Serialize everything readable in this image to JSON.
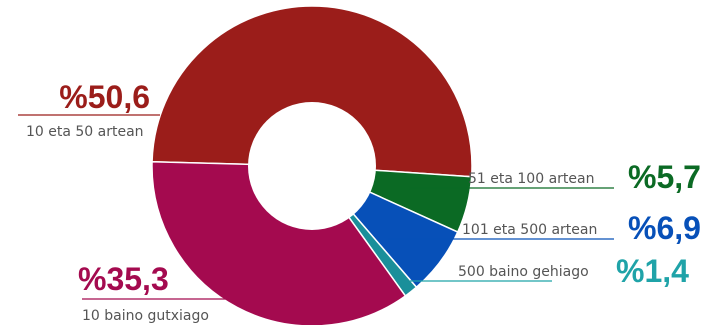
{
  "chart_data": {
    "type": "pie",
    "style": "donut",
    "title": "",
    "slices": [
      {
        "label": "10 eta 50 artean",
        "value": 50.6,
        "value_text": "%50,6",
        "color": "#9b1d1a",
        "text_color": "#9b1d1a"
      },
      {
        "label": "51 eta 100 artean",
        "value": 5.7,
        "value_text": "%5,7",
        "color": "#0b6a24",
        "text_color": "#0b6a24"
      },
      {
        "label": "101 eta 500 artean",
        "value": 6.9,
        "value_text": "%6,9",
        "color": "#0750b8",
        "text_color": "#0750b8"
      },
      {
        "label": "500 baino gehiago",
        "value": 1.4,
        "value_text": "%1,4",
        "color": "#1a8f9a",
        "text_color": "#1fa3a8"
      },
      {
        "label": "10 baino gutxiago",
        "value": 35.3,
        "value_text": "%35,3",
        "color": "#a40a4f",
        "text_color": "#a40a4f"
      }
    ]
  }
}
